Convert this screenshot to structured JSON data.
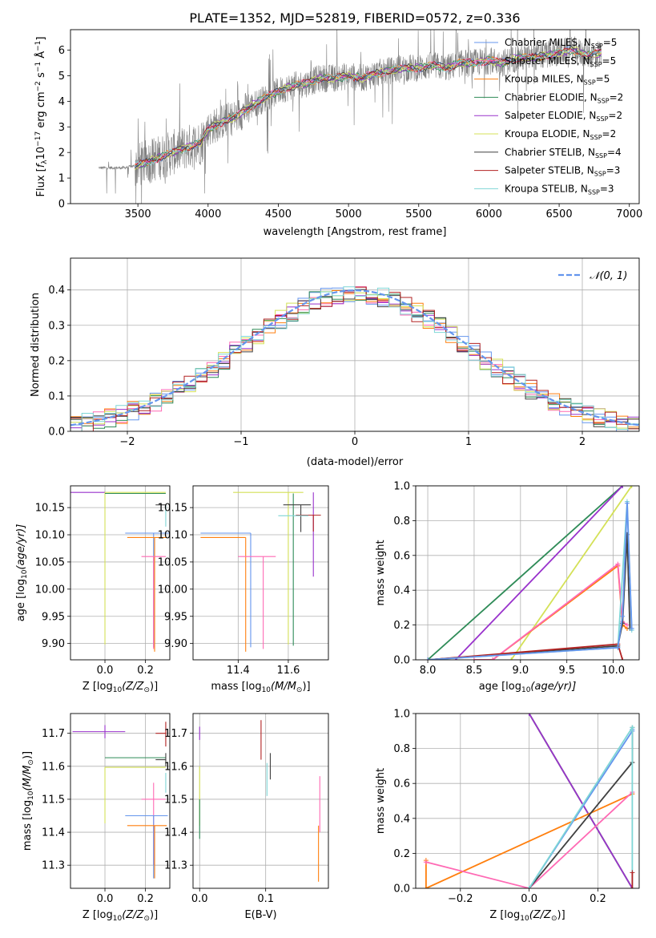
{
  "figure_title": "PLATE=1352, MJD=52819, FIBERID=0572, z=0.336",
  "colors": {
    "chabrier_miles": "#6495ed",
    "salpeter_miles": "#ff69b4",
    "kroupa_miles": "#ff7f0e",
    "chabrier_elodie": "#2e8b57",
    "salpeter_elodie": "#9932cc",
    "kroupa_elodie": "#d4e157",
    "chabrier_stelib": "#404040",
    "salpeter_stelib": "#b22222",
    "kroupa_stelib": "#7fd6d6",
    "data_spectrum": "#808080",
    "gaussian": "#6495ed",
    "grid": "#b0b0b0"
  },
  "chart_data": [
    {
      "id": "spectrum",
      "type": "line",
      "title": "PLATE=1352, MJD=52819, FIBERID=0572, z=0.336",
      "xlabel": "wavelength [Angstrom, rest frame]",
      "ylabel_prefix": "Flux [",
      "ylabel_suffix": "]",
      "xlim": [
        3020,
        7070
      ],
      "ylim": [
        0,
        6.8
      ],
      "xticks": [
        "3500",
        "4000",
        "4500",
        "5000",
        "5500",
        "6000",
        "6500",
        "7000"
      ],
      "yticks": [
        "0",
        "1",
        "2",
        "3",
        "4",
        "5",
        "6"
      ],
      "grid": false,
      "legend_position": "top-right",
      "legend": [
        {
          "model": "Chabrier MILES",
          "nssp": "5",
          "color_key": "chabrier_miles"
        },
        {
          "model": "Salpeter MILES",
          "nssp": "5",
          "color_key": "salpeter_miles"
        },
        {
          "model": "Kroupa MILES",
          "nssp": "5",
          "color_key": "kroupa_miles"
        },
        {
          "model": "Chabrier ELODIE",
          "nssp": "2",
          "color_key": "chabrier_elodie"
        },
        {
          "model": "Salpeter ELODIE",
          "nssp": "2",
          "color_key": "salpeter_elodie"
        },
        {
          "model": "Kroupa ELODIE",
          "nssp": "2",
          "color_key": "kroupa_elodie"
        },
        {
          "model": "Chabrier STELIB",
          "nssp": "4",
          "color_key": "chabrier_stelib"
        },
        {
          "model": "Salpeter STELIB",
          "nssp": "3",
          "color_key": "salpeter_stelib"
        },
        {
          "model": "Kroupa STELIB",
          "nssp": "3",
          "color_key": "kroupa_stelib"
        }
      ],
      "continuum": {
        "x": [
          3220,
          3400,
          3500,
          3600,
          3700,
          3800,
          3900,
          3950,
          4000,
          4100,
          4200,
          4300,
          4400,
          4500,
          4600,
          4700,
          4800,
          4900,
          5000,
          5100,
          5200,
          5300,
          5400,
          5500,
          5600,
          5700,
          5800,
          5900,
          6000,
          6100,
          6200,
          6300,
          6400,
          6500,
          6600,
          6700,
          6800
        ],
        "y": [
          1.4,
          1.4,
          1.5,
          1.7,
          1.9,
          2.1,
          2.3,
          2.4,
          2.9,
          3.2,
          3.4,
          3.8,
          4.1,
          4.4,
          4.6,
          4.7,
          4.9,
          4.9,
          5.0,
          4.9,
          5.1,
          5.2,
          5.3,
          5.3,
          5.4,
          5.3,
          5.5,
          5.5,
          5.6,
          5.5,
          5.7,
          5.7,
          5.8,
          5.9,
          6.0,
          5.8,
          5.9
        ]
      }
    },
    {
      "id": "residuals",
      "type": "step",
      "xlabel": "(data-model)/error",
      "ylabel": "Normed distribution",
      "xlim": [
        -2.5,
        2.5
      ],
      "ylim": [
        0,
        0.49
      ],
      "xticks": [
        "−2",
        "−1",
        "0",
        "1",
        "2"
      ],
      "yticks": [
        "0.0",
        "0.1",
        "0.2",
        "0.3",
        "0.4"
      ],
      "grid": true,
      "legend_position": "top-right",
      "legend_label": "𝒩(0, 1)",
      "bin_width": 0.1,
      "bin_start": -2.5
    },
    {
      "id": "age-vs-z",
      "type": "errorbar",
      "xlabel": "Z [log",
      "xlabel_tail": "(Z/Z",
      "xlabel_end": ")]",
      "ylabel": "age  [log",
      "ylabel_tail": "(age/yr)]",
      "xlim": [
        -0.17,
        0.32
      ],
      "ylim": [
        9.87,
        10.19
      ],
      "xticks": [
        "0.0",
        "0.2"
      ],
      "yticks": [
        "9.90",
        "9.95",
        "10.00",
        "10.05",
        "10.10",
        "10.15"
      ],
      "grid": true,
      "points": [
        {
          "color_key": "salpeter_elodie",
          "x": 0.0,
          "xerr": [
            0.35,
            0.0
          ],
          "y": 10.178,
          "yerr": [
            0.0,
            0.0
          ]
        },
        {
          "color_key": "kroupa_elodie",
          "x": 0.0,
          "xerr": [
            0.0,
            0.3
          ],
          "y": 10.178,
          "yerr": [
            0.28,
            0.0
          ]
        },
        {
          "color_key": "chabrier_elodie",
          "x": 0.0,
          "xerr": [
            0.0,
            0.3
          ],
          "y": 10.176,
          "yerr": [
            0.0,
            0.0
          ]
        },
        {
          "color_key": "chabrier_stelib",
          "x": 0.3,
          "xerr": [
            0.05,
            0.0
          ],
          "y": 10.155,
          "yerr": [
            0.0,
            0.0
          ]
        },
        {
          "color_key": "kroupa_stelib",
          "x": 0.3,
          "xerr": [
            0.0,
            0.0
          ],
          "y": 10.155,
          "yerr": [
            0.04,
            0.0
          ]
        },
        {
          "color_key": "chabrier_miles",
          "x": 0.24,
          "xerr": [
            0.14,
            0.08
          ],
          "y": 10.103,
          "yerr": [
            0.21,
            0.0
          ]
        },
        {
          "color_key": "kroupa_miles",
          "x": 0.245,
          "xerr": [
            0.135,
            0.06
          ],
          "y": 10.095,
          "yerr": [
            0.21,
            0.0
          ]
        },
        {
          "color_key": "salpeter_miles",
          "x": 0.24,
          "xerr": [
            0.06,
            0.06
          ],
          "y": 10.06,
          "yerr": [
            0.17,
            0.0
          ]
        },
        {
          "color_key": "salpeter_stelib",
          "x": 0.3,
          "xerr": [
            0.0,
            0.0
          ],
          "y": 10.135,
          "yerr": [
            0.0,
            0.0
          ]
        }
      ]
    },
    {
      "id": "age-vs-mass",
      "type": "errorbar",
      "xlabel": "mass [log",
      "xlabel_tail": "(M/M",
      "xlabel_end": ")]",
      "xlim": [
        11.22,
        11.76
      ],
      "ylim": [
        9.87,
        10.19
      ],
      "xticks": [
        "11.4",
        "11.6"
      ],
      "yticks": [
        "9.90",
        "9.95",
        "10.00",
        "10.05",
        "10.10",
        "10.15"
      ],
      "grid": true,
      "points": [
        {
          "color_key": "salpeter_elodie",
          "x": 11.7,
          "xerr": [
            0.0,
            0.0
          ],
          "y": 10.178,
          "yerr": [
            0.155,
            0.0
          ]
        },
        {
          "color_key": "kroupa_elodie",
          "x": 11.6,
          "xerr": [
            0.22,
            0.06
          ],
          "y": 10.178,
          "yerr": [
            0.28,
            0.0
          ]
        },
        {
          "color_key": "chabrier_elodie",
          "x": 11.62,
          "xerr": [
            0.0,
            0.0
          ],
          "y": 10.176,
          "yerr": [
            0.28,
            0.0
          ]
        },
        {
          "color_key": "chabrier_stelib",
          "x": 11.65,
          "xerr": [
            0.07,
            0.04
          ],
          "y": 10.155,
          "yerr": [
            0.05,
            0.0
          ]
        },
        {
          "color_key": "salpeter_stelib",
          "x": 11.7,
          "xerr": [
            0.07,
            0.03
          ],
          "y": 10.136,
          "yerr": [
            0.03,
            0.0
          ]
        },
        {
          "color_key": "kroupa_stelib",
          "x": 11.6,
          "xerr": [
            0.04,
            0.08
          ],
          "y": 10.135,
          "yerr": [
            0.0,
            0.0
          ]
        },
        {
          "color_key": "chabrier_miles",
          "x": 11.45,
          "xerr": [
            0.2,
            0.0
          ],
          "y": 10.103,
          "yerr": [
            0.21,
            0.0
          ]
        },
        {
          "color_key": "kroupa_miles",
          "x": 11.43,
          "xerr": [
            0.18,
            0.0
          ],
          "y": 10.095,
          "yerr": [
            0.21,
            0.0
          ]
        },
        {
          "color_key": "salpeter_miles",
          "x": 11.5,
          "xerr": [
            0.1,
            0.05
          ],
          "y": 10.06,
          "yerr": [
            0.17,
            0.0
          ]
        }
      ]
    },
    {
      "id": "weight-vs-age",
      "type": "line",
      "xlabel": "age  [log",
      "xlabel_tail": "(age/yr)]",
      "ylabel": "mass weight",
      "xlim": [
        7.87,
        10.28
      ],
      "ylim": [
        0,
        1.0
      ],
      "xticks": [
        "8.0",
        "8.5",
        "9.0",
        "9.5",
        "10.0"
      ],
      "yticks": [
        "0.0",
        "0.2",
        "0.4",
        "0.6",
        "0.8",
        "1.0"
      ],
      "grid": true,
      "series": [
        {
          "color_key": "chabrier_elodie",
          "x": [
            8.0,
            10.1
          ],
          "y": [
            0.0,
            1.0
          ]
        },
        {
          "color_key": "salpeter_elodie",
          "x": [
            8.3,
            10.1
          ],
          "y": [
            0.0,
            1.0
          ]
        },
        {
          "color_key": "kroupa_elodie",
          "x": [
            8.9,
            10.2
          ],
          "y": [
            0.0,
            1.0
          ]
        },
        {
          "color_key": "kroupa_miles",
          "x": [
            8.5,
            8.7,
            10.05,
            10.1,
            10.15
          ],
          "y": [
            0.0,
            0.0,
            0.54,
            0.2,
            0.18
          ]
        },
        {
          "color_key": "salpeter_miles",
          "x": [
            8.5,
            8.7,
            10.05,
            10.1,
            10.15
          ],
          "y": [
            0.0,
            0.0,
            0.55,
            0.22,
            0.2
          ]
        },
        {
          "color_key": "chabrier_stelib",
          "x": [
            8.0,
            10.05,
            10.1,
            10.15,
            10.18
          ],
          "y": [
            0.0,
            0.08,
            0.21,
            0.72,
            0.18
          ]
        },
        {
          "color_key": "salpeter_stelib",
          "x": [
            8.0,
            10.05,
            10.1
          ],
          "y": [
            0.0,
            0.09,
            0.0
          ]
        },
        {
          "color_key": "kroupa_stelib",
          "x": [
            8.0,
            10.05,
            10.15,
            10.2
          ],
          "y": [
            0.0,
            0.07,
            0.91,
            0.17
          ]
        },
        {
          "color_key": "chabrier_miles",
          "x": [
            8.0,
            10.05,
            10.1,
            10.15,
            10.2
          ],
          "y": [
            0.0,
            0.07,
            0.25,
            0.9,
            0.18
          ]
        }
      ]
    },
    {
      "id": "mass-vs-z",
      "type": "errorbar",
      "xlabel": "Z [log",
      "xlabel_tail": "(Z/Z",
      "xlabel_end": ")]",
      "ylabel": "mass [log",
      "ylabel_tail": "(M/M",
      "ylabel_end": ")]",
      "xlim": [
        -0.17,
        0.32
      ],
      "ylim": [
        11.23,
        11.76
      ],
      "xticks": [
        "0.0",
        "0.2"
      ],
      "yticks": [
        "11.3",
        "11.4",
        "11.5",
        "11.6",
        "11.7"
      ],
      "grid": true,
      "points": [
        {
          "color_key": "salpeter_elodie",
          "x": 0.0,
          "xerr": [
            0.16,
            0.1
          ],
          "y": 11.705,
          "yerr": [
            0.02,
            0.02
          ]
        },
        {
          "color_key": "salpeter_stelib",
          "x": 0.3,
          "xerr": [
            0.05,
            0.0
          ],
          "y": 11.7,
          "yerr": [
            0.04,
            0.035
          ]
        },
        {
          "color_key": "chabrier_elodie",
          "x": 0.0,
          "xerr": [
            0.0,
            0.3
          ],
          "y": 11.626,
          "yerr": [
            0.0,
            0.0
          ]
        },
        {
          "color_key": "chabrier_stelib",
          "x": 0.3,
          "xerr": [
            0.05,
            0.0
          ],
          "y": 11.62,
          "yerr": [
            0.02,
            0.02
          ]
        },
        {
          "color_key": "kroupa_elodie",
          "x": 0.0,
          "xerr": [
            0.0,
            0.3
          ],
          "y": 11.597,
          "yerr": [
            0.17,
            0.0
          ]
        },
        {
          "color_key": "salpeter_miles",
          "x": 0.24,
          "xerr": [
            0.06,
            0.06
          ],
          "y": 11.5,
          "yerr": [
            0.2,
            0.05
          ]
        },
        {
          "color_key": "chabrier_miles",
          "x": 0.24,
          "xerr": [
            0.14,
            0.07
          ],
          "y": 11.45,
          "yerr": [
            0.19,
            0.0
          ]
        },
        {
          "color_key": "kroupa_miles",
          "x": 0.245,
          "xerr": [
            0.135,
            0.06
          ],
          "y": 11.42,
          "yerr": [
            0.16,
            0.0
          ]
        },
        {
          "color_key": "kroupa_stelib",
          "x": 0.3,
          "xerr": [
            0.0,
            0.0
          ],
          "y": 11.55,
          "yerr": [
            0.03,
            0.03
          ]
        }
      ]
    },
    {
      "id": "mass-vs-ebv",
      "type": "errorbar",
      "xlabel": "E(B-V)",
      "xlim": [
        -0.01,
        0.195
      ],
      "ylim": [
        11.23,
        11.76
      ],
      "xticks": [
        "0.0",
        "0.1"
      ],
      "yticks": [
        "11.3",
        "11.4",
        "11.5",
        "11.6",
        "11.7"
      ],
      "grid": true,
      "points": [
        {
          "color_key": "salpeter_elodie",
          "x": 0.0,
          "xerr": [
            0.0,
            0.0
          ],
          "y": 11.7,
          "yerr": [
            0.02,
            0.02
          ]
        },
        {
          "color_key": "kroupa_elodie",
          "x": 0.0,
          "xerr": [
            0.0,
            0.0
          ],
          "y": 11.6,
          "yerr": [
            0.18,
            0.0
          ]
        },
        {
          "color_key": "chabrier_elodie",
          "x": 0.0,
          "xerr": [
            0.0,
            0.0
          ],
          "y": 11.5,
          "yerr": [
            0.12,
            0.0
          ]
        },
        {
          "color_key": "salpeter_stelib",
          "x": 0.093,
          "xerr": [
            0.0,
            0.0
          ],
          "y": 11.68,
          "yerr": [
            0.06,
            0.06
          ]
        },
        {
          "color_key": "chabrier_stelib",
          "x": 0.107,
          "xerr": [
            0.0,
            0.0
          ],
          "y": 11.6,
          "yerr": [
            0.04,
            0.04
          ]
        },
        {
          "color_key": "kroupa_stelib",
          "x": 0.102,
          "xerr": [
            0.0,
            0.0
          ],
          "y": 11.56,
          "yerr": [
            0.05,
            0.05
          ]
        },
        {
          "color_key": "salpeter_miles",
          "x": 0.182,
          "xerr": [
            0.0,
            0.0
          ],
          "y": 11.5,
          "yerr": [
            0.1,
            0.07
          ]
        },
        {
          "color_key": "kroupa_miles",
          "x": 0.18,
          "xerr": [
            0.0,
            0.0
          ],
          "y": 11.42,
          "yerr": [
            0.17,
            0.0
          ]
        }
      ]
    },
    {
      "id": "weight-vs-z",
      "type": "line",
      "xlabel": "Z [log",
      "xlabel_tail": "(Z/Z",
      "xlabel_end": ")]",
      "ylabel": "mass weight",
      "xlim": [
        -0.33,
        0.32
      ],
      "ylim": [
        0,
        1.0
      ],
      "xticks": [
        "−0.2",
        "0.0",
        "0.2"
      ],
      "yticks": [
        "0.0",
        "0.2",
        "0.4",
        "0.6",
        "0.8",
        "1.0"
      ],
      "grid": true,
      "series": [
        {
          "color_key": "kroupa_elodie",
          "x": [
            0.0,
            0.3
          ],
          "y": [
            1.0,
            0.0
          ]
        },
        {
          "color_key": "chabrier_elodie",
          "x": [
            0.0,
            0.3
          ],
          "y": [
            1.0,
            0.0
          ]
        },
        {
          "color_key": "salpeter_elodie",
          "x": [
            0.0,
            0.3
          ],
          "y": [
            1.0,
            0.0
          ]
        },
        {
          "color_key": "kroupa_miles",
          "x": [
            -0.3,
            -0.3,
            0.3
          ],
          "y": [
            0.16,
            0.0,
            0.54
          ]
        },
        {
          "color_key": "salpeter_miles",
          "x": [
            -0.3,
            0.0,
            0.3
          ],
          "y": [
            0.15,
            0.0,
            0.55
          ]
        },
        {
          "color_key": "chabrier_stelib",
          "x": [
            0.0,
            0.3,
            0.3
          ],
          "y": [
            0.0,
            0.72,
            0.92
          ]
        },
        {
          "color_key": "chabrier_miles",
          "x": [
            0.0,
            0.3,
            0.3
          ],
          "y": [
            0.0,
            0.9,
            0.91
          ]
        },
        {
          "color_key": "kroupa_stelib",
          "x": [
            0.0,
            0.3,
            0.3
          ],
          "y": [
            0.0,
            0.92,
            0.0
          ]
        },
        {
          "color_key": "salpeter_stelib",
          "x": [
            0.3,
            0.3
          ],
          "y": [
            0.0,
            0.09
          ]
        }
      ]
    }
  ]
}
